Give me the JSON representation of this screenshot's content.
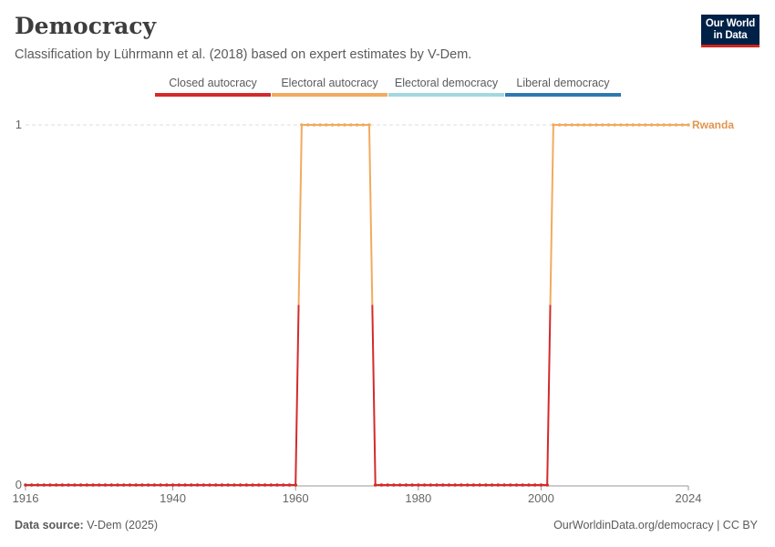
{
  "header": {
    "title": "Democracy",
    "subtitle": "Classification by Lührmann et al. (2018) based on expert estimates by V-Dem."
  },
  "logo": {
    "line1": "Our World",
    "line2": "in Data"
  },
  "legend": [
    {
      "label": "Closed autocracy",
      "color": "#d42a2a"
    },
    {
      "label": "Electoral autocracy",
      "color": "#f2aa5f"
    },
    {
      "label": "Electoral democracy",
      "color": "#a1d8df"
    },
    {
      "label": "Liberal democracy",
      "color": "#2e78b0"
    }
  ],
  "footer": {
    "source_label": "Data source:",
    "source_value": "V-Dem (2025)",
    "link": "OurWorldinData.org/democracy | CC BY"
  },
  "chart_data": {
    "type": "line",
    "xlim": [
      1916,
      2024
    ],
    "ylim": [
      0,
      1
    ],
    "x_ticks": [
      1916,
      1940,
      1960,
      1980,
      2000,
      2024
    ],
    "y_ticks": [
      0,
      1
    ],
    "series": [
      {
        "name": "Rwanda",
        "label_color": "#e0964e",
        "segments": [
          {
            "start": 1916,
            "end": 1960,
            "value": 0
          },
          {
            "start": 1961,
            "end": 1972,
            "value": 1
          },
          {
            "start": 1973,
            "end": 2001,
            "value": 0
          },
          {
            "start": 2002,
            "end": 2024,
            "value": 1
          }
        ]
      }
    ]
  }
}
